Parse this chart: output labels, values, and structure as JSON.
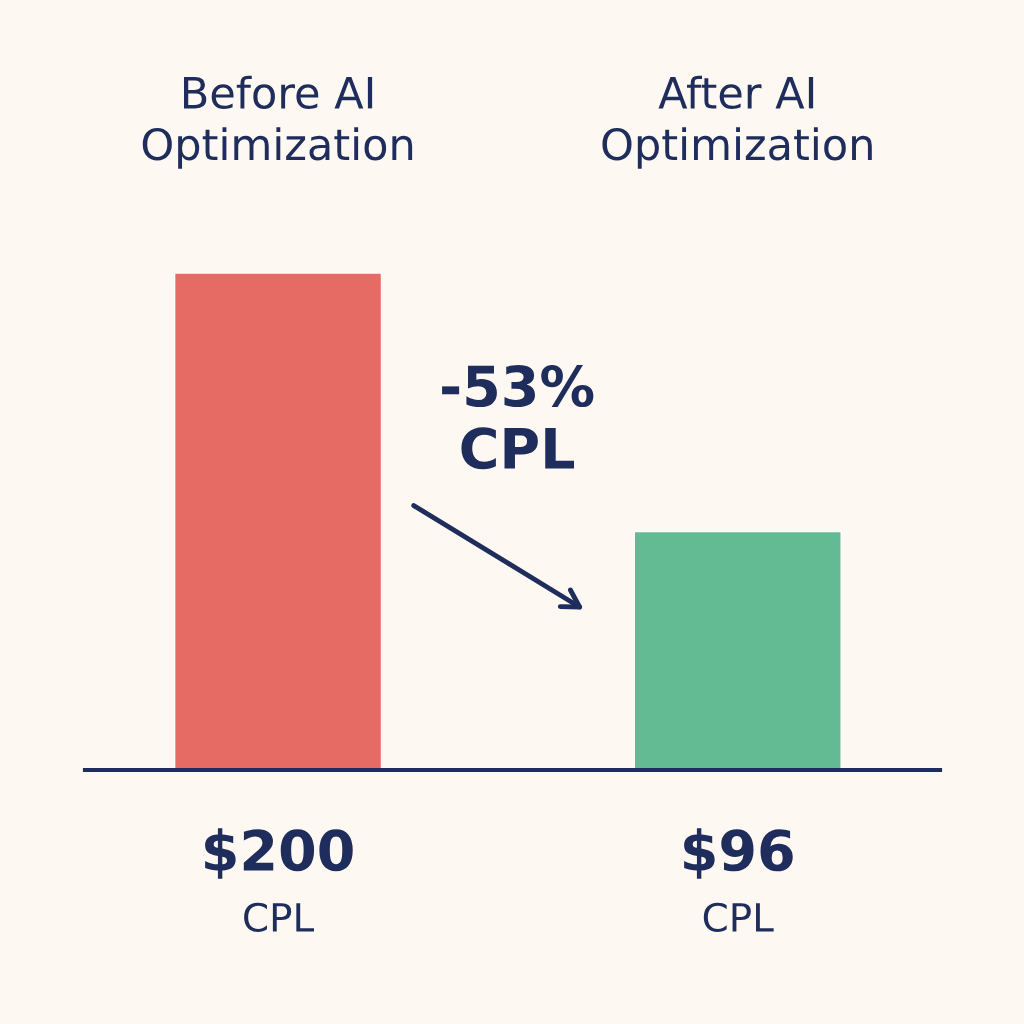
{
  "chart_data": {
    "type": "bar",
    "categories": [
      "Before AI\nOptimization",
      "After AI\nOptimization"
    ],
    "values": [
      200,
      96
    ],
    "colors": [
      "#e56b64",
      "#62bb92"
    ],
    "value_labels": [
      "$200\nCPL",
      "$96\nCPL"
    ],
    "annotations": [
      "-53%\nCPL"
    ],
    "grid": false,
    "legend": false
  }
}
